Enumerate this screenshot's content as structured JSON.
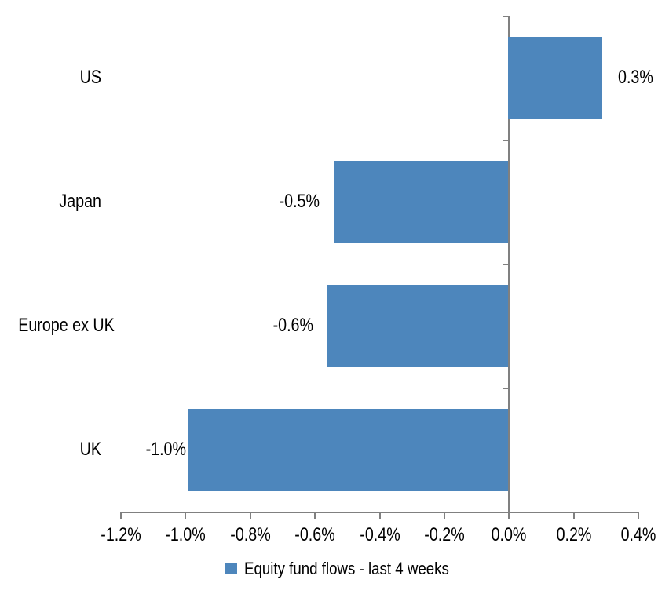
{
  "chart_data": {
    "type": "bar",
    "orientation": "horizontal",
    "title": "",
    "categories": [
      "US",
      "Japan",
      "Europe ex UK",
      "UK"
    ],
    "series": [
      {
        "name": "Equity fund flows - last 4 weeks",
        "values": [
          0.3,
          -0.5,
          -0.6,
          -1.0
        ],
        "data_labels": [
          "0.3%",
          "-0.5%",
          "-0.6%",
          "-1.0%"
        ],
        "bar_extents_pct_estimated": [
          0.29,
          -0.54,
          -0.56,
          -0.99
        ]
      }
    ],
    "x_axis": {
      "min": -1.2,
      "max": 0.4,
      "tick_step": 0.2,
      "tick_labels": [
        "-1.2%",
        "-1.0%",
        "-0.8%",
        "-0.6%",
        "-0.4%",
        "-0.2%",
        "0.0%",
        "0.2%",
        "0.4%"
      ]
    },
    "y_axis": {
      "zero_line": true,
      "category_boundary_ticks": true
    },
    "grid": false,
    "legend": {
      "position": "bottom-center",
      "entries": [
        {
          "label": "Equity fund flows - last 4 weeks"
        }
      ]
    },
    "colors": {
      "bar": "#4D86BC",
      "axis": "#808080",
      "text": "#000000",
      "background": "#FFFFFF"
    }
  }
}
